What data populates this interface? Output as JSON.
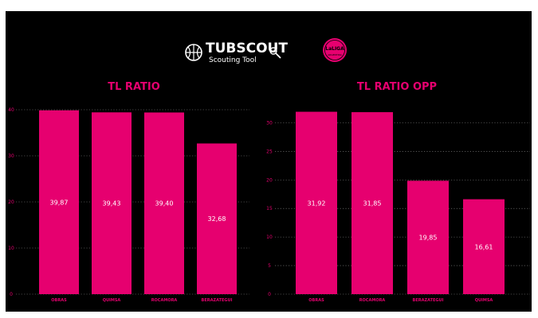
{
  "colors": {
    "bar": "#e6006f",
    "background": "#000000",
    "text": "#ffffff",
    "grid": "#8a8a8a"
  },
  "header": {
    "brand": "TUBSCOUT",
    "tagline": "Scouting Tool",
    "brand_icon": "basketball-icon",
    "search_icon": "magnifier-icon",
    "league_logo_text": "LaLIGA",
    "league_logo_sub": "ARGENTINA"
  },
  "chart_data": [
    {
      "type": "bar",
      "title": "TL RATIO",
      "categories": [
        "OBRAS",
        "QUIMSA",
        "ROCAMORA",
        "BERAZATEGUI"
      ],
      "values": [
        39.87,
        39.43,
        39.4,
        32.68
      ],
      "value_labels": [
        "39,87",
        "39,43",
        "39,40",
        "32,68"
      ],
      "ylim": [
        0,
        40
      ],
      "yticks": [
        0,
        10,
        20,
        30,
        40
      ],
      "grid": true
    },
    {
      "type": "bar",
      "title": "TL RATIO OPP",
      "categories": [
        "OBRAS",
        "ROCAMORA",
        "BERAZATEGUI",
        "QUIMSA"
      ],
      "values": [
        31.92,
        31.85,
        19.85,
        16.61
      ],
      "value_labels": [
        "31,92",
        "31,85",
        "19,85",
        "16,61"
      ],
      "ylim": [
        0,
        32
      ],
      "yticks": [
        0,
        5,
        10,
        15,
        20,
        25,
        30
      ],
      "grid": true
    }
  ]
}
